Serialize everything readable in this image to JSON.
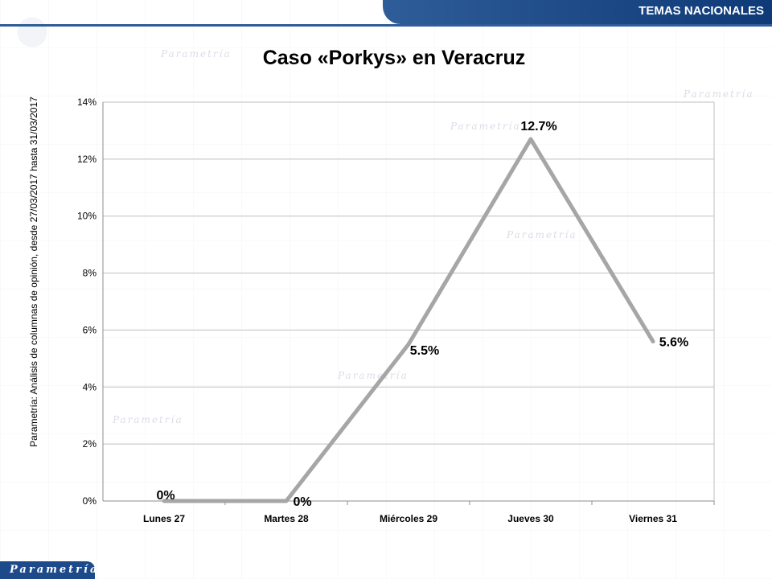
{
  "header": {
    "section_label": "TEMAS NACIONALES"
  },
  "footer": {
    "brand": "Parametría"
  },
  "side_note": "Parametría: Análisis de columnas de opinión, desde 27/03/2017 hasta 31/03/2017",
  "colors": {
    "banner": "#1d4a8a",
    "line": "#a6a6a6",
    "gridline": "#bfbfbf"
  },
  "chart_data": {
    "type": "line",
    "title": "Caso «Porkys» en Veracruz",
    "xlabel": "",
    "ylabel": "",
    "categories": [
      "Lunes 27",
      "Martes 28",
      "Miércoles 29",
      "Jueves 30",
      "Viernes 31"
    ],
    "series": [
      {
        "values": [
          0,
          0,
          5.5,
          12.7,
          5.6
        ],
        "labels": [
          "0%",
          "0%",
          "5.5%",
          "12.7%",
          "5.6%"
        ]
      }
    ],
    "ylim": [
      0,
      14
    ],
    "yticks": [
      0,
      2,
      4,
      6,
      8,
      10,
      12,
      14
    ],
    "ytick_labels": [
      "0%",
      "2%",
      "4%",
      "6%",
      "8%",
      "10%",
      "12%",
      "14%"
    ],
    "grid": true,
    "legend": "none"
  }
}
